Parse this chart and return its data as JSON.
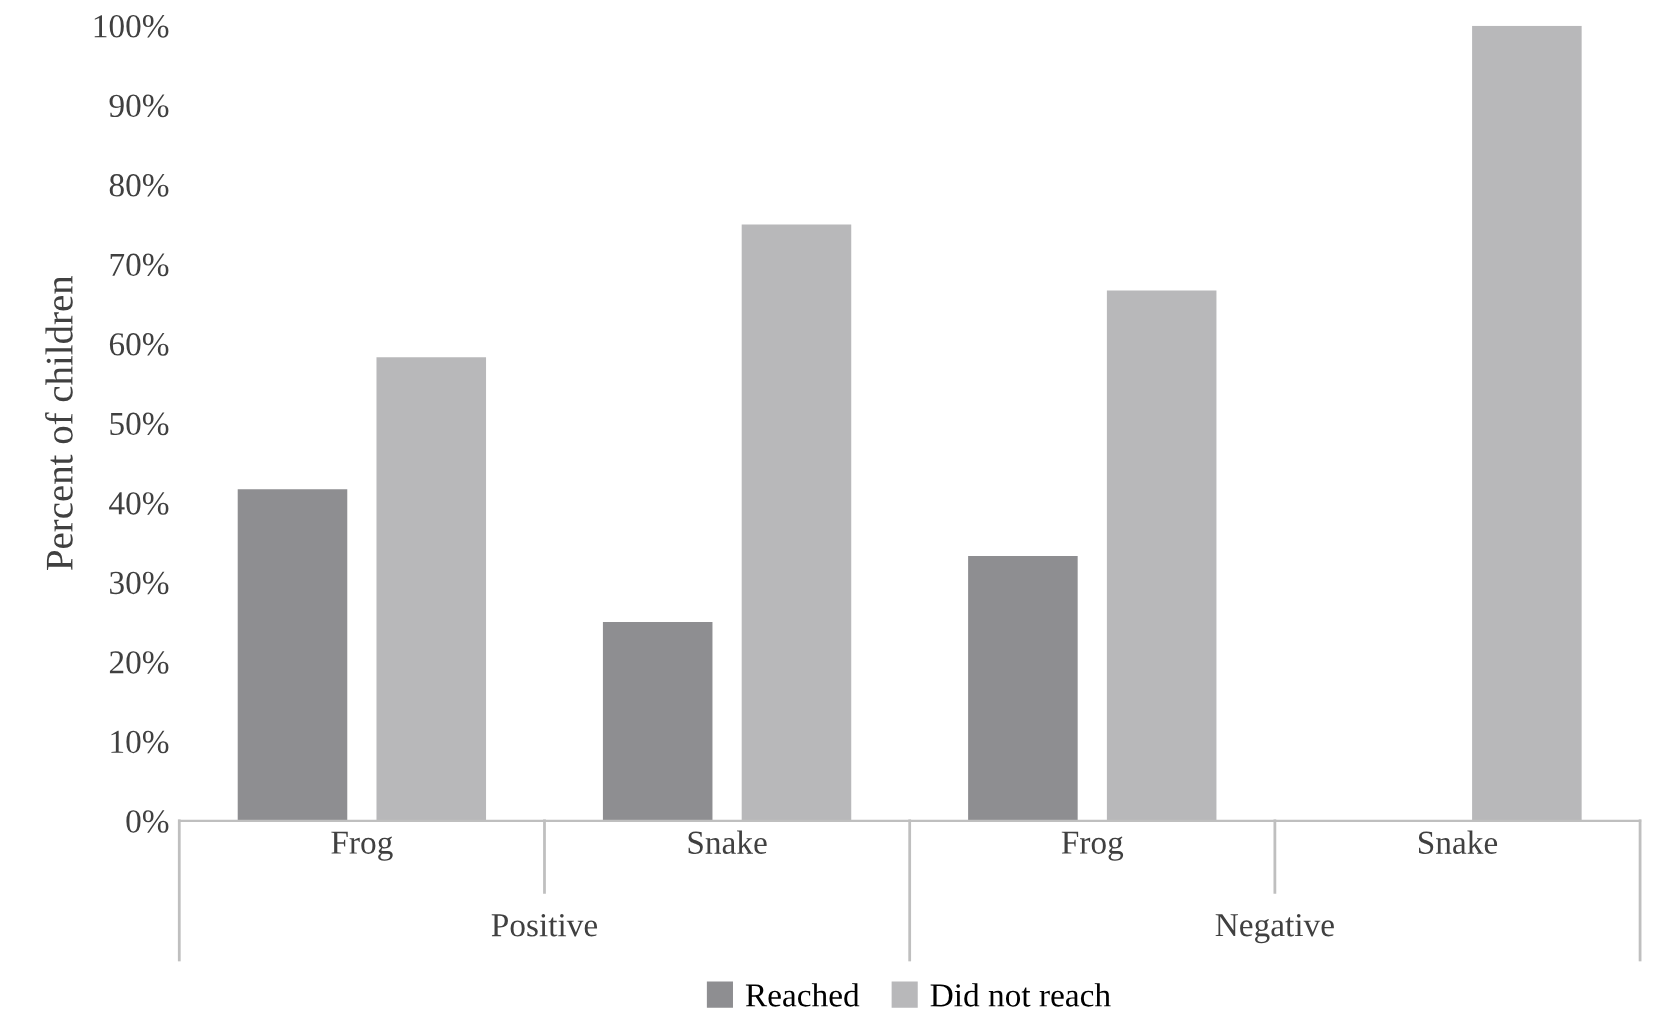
{
  "chart_data": {
    "type": "bar",
    "ylabel": "Percent of children",
    "categories": [
      "Frog",
      "Snake",
      "Frog",
      "Snake"
    ],
    "annotations": [
      "Positive",
      "Negative"
    ],
    "series": [
      {
        "name": "Reached",
        "color": "#8e8e91",
        "values": [
          41.7,
          25,
          33.3,
          0
        ]
      },
      {
        "name": "Did not reach",
        "color": "#b8b8ba",
        "values": [
          58.3,
          75,
          66.7,
          100
        ]
      }
    ],
    "ylim": [
      0,
      100
    ],
    "yticks": [
      {
        "value": 0,
        "label": "0%"
      },
      {
        "value": 10,
        "label": "10%"
      },
      {
        "value": 20,
        "label": "20%"
      },
      {
        "value": 30,
        "label": "30%"
      },
      {
        "value": 40,
        "label": "40%"
      },
      {
        "value": 50,
        "label": "50%"
      },
      {
        "value": 60,
        "label": "60%"
      },
      {
        "value": 70,
        "label": "70%"
      },
      {
        "value": 80,
        "label": "80%"
      },
      {
        "value": 90,
        "label": "90%"
      },
      {
        "value": 100,
        "label": "100%"
      }
    ],
    "grid": false,
    "legend": "bottom"
  }
}
